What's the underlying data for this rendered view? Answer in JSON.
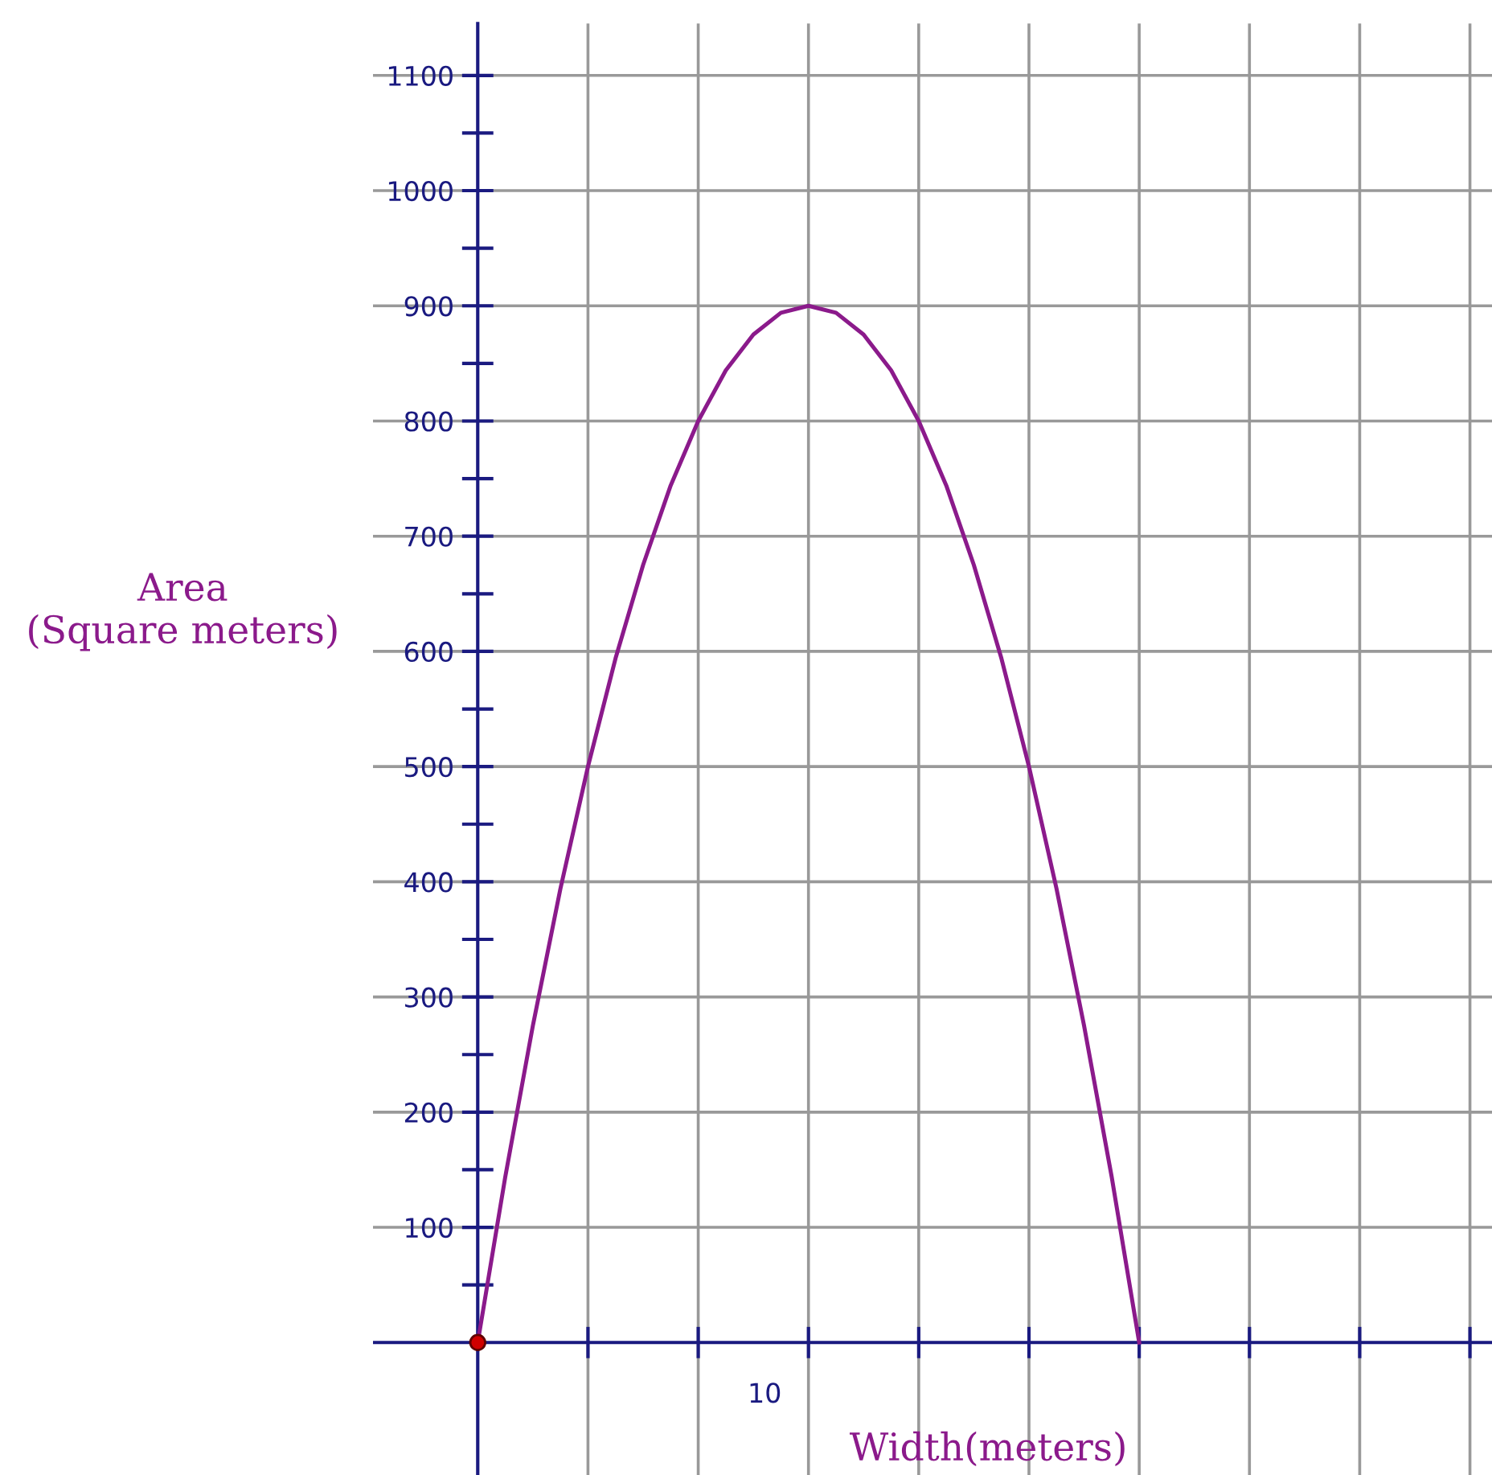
{
  "chart_data": {
    "type": "line",
    "xlabel": "Width(meters)",
    "ylabel": "Area\n(Square meters)",
    "annotations": [
      "10"
    ],
    "categories": [
      null,
      null,
      null,
      null,
      null,
      null,
      null,
      null,
      null,
      null,
      null,
      null,
      null,
      null,
      null,
      null,
      null,
      null,
      null,
      null,
      null,
      null,
      null,
      null,
      null
    ],
    "series": [
      {
        "values": [
          0,
          144,
          275,
          394,
          500,
          594,
          675,
          744,
          800,
          844,
          875,
          894,
          900,
          894,
          875,
          844,
          800,
          744,
          675,
          594,
          500,
          394,
          275,
          144,
          0
        ],
        "color": "#8b1a8b"
      }
    ],
    "ylim": [
      -115,
      1145
    ],
    "yticks": [
      100,
      200,
      300,
      400,
      500,
      600,
      700,
      800,
      900,
      1000,
      1100
    ],
    "ref_lines": [
      {
        "axis": "y",
        "value": 0,
        "color": "#1a1a80",
        "line_style": "solid"
      }
    ],
    "grid": true,
    "legend": false
  }
}
